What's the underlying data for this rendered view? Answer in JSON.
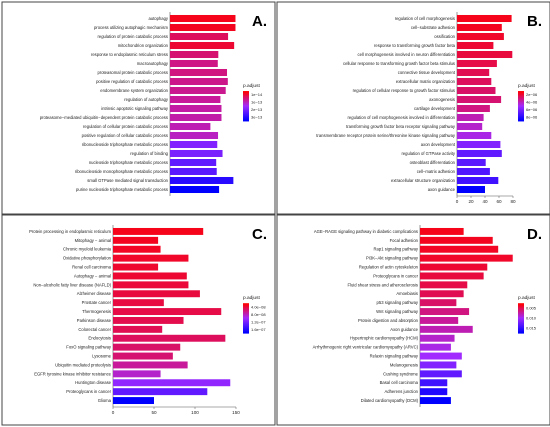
{
  "chart_data": [
    {
      "type": "bar",
      "panel_letter": "A.",
      "categories": [
        "autophagy",
        "process utilizing autophagic mechanism",
        "regulation of protein catabolic process",
        "mitochondrion organization",
        "response to endoplasmic reticulum stress",
        "macroautophagy",
        "proteasomal protein catabolic process",
        "positive regulation of catabolic process",
        "endomembrane system organization",
        "regulation of autophagy",
        "intrinsic apoptotic signaling pathway",
        "proteasome−mediated ubiquitin−dependent protein catabolic process",
        "regulation of cellular protein catabolic process",
        "positive regulation of cellular catabolic process",
        "ribonucleoside triphosphate metabolic process",
        "regulation of binding",
        "nucleoside triphosphate metabolic process",
        "ribonucleoside monophosphate metabolic process",
        "small GTPase mediated signal transduction",
        "purine nucleoside triphosphate metabolic process"
      ],
      "values": [
        248,
        248,
        220,
        243,
        183,
        181,
        216,
        219,
        211,
        191,
        195,
        195,
        153,
        182,
        179,
        199,
        175,
        177,
        240,
        186
      ],
      "color_scale": [
        0.05,
        0.06,
        0.18,
        0.1,
        0.22,
        0.26,
        0.25,
        0.27,
        0.28,
        0.3,
        0.32,
        0.33,
        0.35,
        0.38,
        0.6,
        0.62,
        0.7,
        0.72,
        0.88,
        1.0
      ],
      "xlim": [
        0,
        250
      ],
      "xticks": [],
      "legend": {
        "title": "p.adjust",
        "ticks": [
          "1e−14",
          "1e−13",
          "2e−13",
          "3e−13"
        ]
      }
    },
    {
      "type": "bar",
      "panel_letter": "B.",
      "categories": [
        "regulation of cell morphogenesis",
        "cell−substrate adhesion",
        "ossification",
        "response to transforming growth factor beta",
        "cell morphogenesis involved in neuron differentiation",
        "cellular response to transforming growth factor beta stimulus",
        "connective tissue development",
        "extracellular matrix organization",
        "regulation of cellular response to growth factor stimulus",
        "axonogenesis",
        "cartilage development",
        "regulation of cell morphogenesis involved in differentiation",
        "transforming growth factor beta receptor signaling pathway",
        "transmembrane receptor protein serine/threonine kinase signaling pathway",
        "axon development",
        "regulation of GTPase activity",
        "osteoblast differentiation",
        "cell−matrix adhesion",
        "extracellular structure organization",
        "axon guidance"
      ],
      "values": [
        78,
        64,
        67,
        52,
        79,
        57,
        46,
        49,
        55,
        63,
        47,
        38,
        36,
        49,
        62,
        64,
        41,
        47,
        59,
        40
      ],
      "color_scale": [
        0.05,
        0.06,
        0.08,
        0.1,
        0.12,
        0.14,
        0.16,
        0.18,
        0.2,
        0.22,
        0.25,
        0.35,
        0.4,
        0.45,
        0.6,
        0.7,
        0.72,
        0.75,
        0.8,
        1.0
      ],
      "xlim": [
        0,
        80
      ],
      "xticks": [
        "0",
        "20",
        "40",
        "60",
        "80"
      ],
      "legend": {
        "title": "p.adjust",
        "ticks": [
          "2e−06",
          "4e−06",
          "6e−06",
          "8e−06"
        ]
      }
    },
    {
      "type": "bar",
      "panel_letter": "C.",
      "categories": [
        "Protein processing in endoplasmic reticulum",
        "Mitophagy − animal",
        "Chronic myeloid leukemia",
        "Oxidative phosphorylation",
        "Renal cell carcinoma",
        "Autophagy − animal",
        "Non−alcoholic fatty liver disease (NAFLD)",
        "Alzheimer disease",
        "Prostate cancer",
        "Thermogenesis",
        "Parkinson disease",
        "Colorectal cancer",
        "Endocytosis",
        "FoxO signaling pathway",
        "Lysosome",
        "Ubiquitin mediated proteolysis",
        "EGFR tyrosine kinase inhibitor resistance",
        "Huntington disease",
        "Proteoglycans in cancer",
        "Glioma"
      ],
      "values": [
        110,
        55,
        58,
        92,
        55,
        90,
        92,
        106,
        62,
        132,
        86,
        60,
        137,
        82,
        73,
        91,
        58,
        143,
        115,
        50
      ],
      "color_scale": [
        0.05,
        0.06,
        0.07,
        0.08,
        0.09,
        0.1,
        0.11,
        0.12,
        0.13,
        0.14,
        0.15,
        0.16,
        0.18,
        0.2,
        0.22,
        0.3,
        0.4,
        0.55,
        0.7,
        1.0
      ],
      "xlim": [
        0,
        150
      ],
      "xticks": [
        "0",
        "50",
        "100",
        "150"
      ],
      "legend": {
        "title": "p.adjust",
        "ticks": [
          "4.0e−08",
          "8.0e−08",
          "1.2e−07",
          "1.6e−07"
        ]
      }
    },
    {
      "type": "bar",
      "panel_letter": "D.",
      "categories": [
        "AGE−RAGE signaling pathway in diabetic complications",
        "Focal adhesion",
        "Rap1 signaling pathway",
        "PI3K−Akt signaling pathway",
        "Regulation of actin cytoskeleton",
        "Proteoglycans in cancer",
        "Fluid shear stress and atherosclerosis",
        "Amoebiasis",
        "p53 signaling pathway",
        "Wnt signaling pathway",
        "Protein digestion and absorption",
        "Axon guidance",
        "Hypertrophic cardiomyopathy (HCM)",
        "Arrhythmogenic right ventricular cardiomyopathy (ARVC)",
        "Relaxin signaling pathway",
        "Melanogenesis",
        "Cushing syndrome",
        "Basal cell carcinoma",
        "Adherens junction",
        "Dilated cardiomyopathy (DCM)"
      ],
      "values": [
        24,
        40,
        43,
        51,
        37,
        35,
        26,
        24,
        20,
        27,
        21,
        29,
        19,
        17,
        23,
        20,
        23,
        15,
        15,
        17
      ],
      "color_scale": [
        0.05,
        0.06,
        0.07,
        0.08,
        0.1,
        0.12,
        0.14,
        0.16,
        0.2,
        0.25,
        0.3,
        0.35,
        0.4,
        0.45,
        0.5,
        0.6,
        0.7,
        0.8,
        0.9,
        1.0
      ],
      "xlim": [
        0,
        55
      ],
      "xticks": [],
      "legend": {
        "title": "p.adjust",
        "ticks": [
          "0.005",
          "0.010",
          "0.015"
        ]
      }
    }
  ],
  "colors": {
    "low": "#ff0000",
    "mid": "#a12aff",
    "high": "#0000ff",
    "frame": "#444444"
  }
}
